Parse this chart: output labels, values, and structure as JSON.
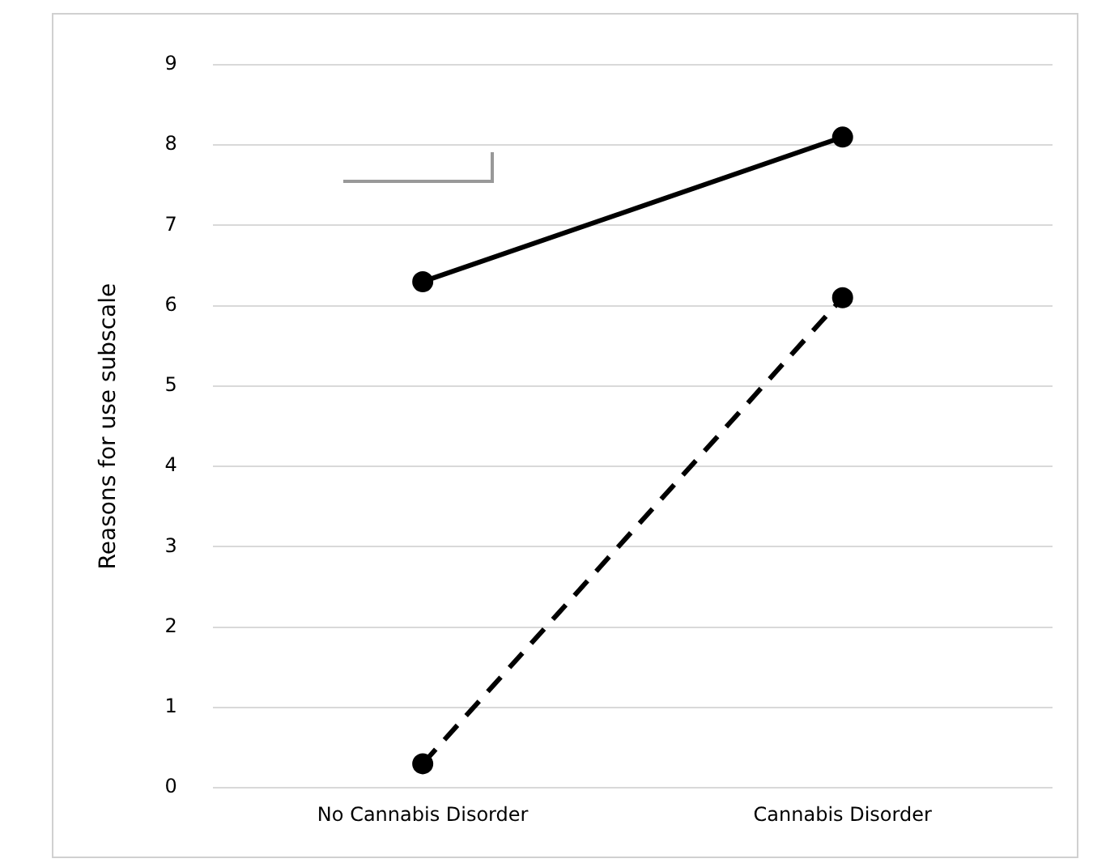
{
  "chart_data": {
    "type": "line",
    "ylabel": "Reasons for use subscale",
    "categories": [
      "No Cannabis Disorder",
      "Cannabis Disorder"
    ],
    "series": [
      {
        "color": "#000000",
        "values": [
          6.3,
          8.1
        ],
        "line_style": "solid"
      },
      {
        "color": "#000000",
        "values": [
          0.3,
          6.1
        ],
        "line_style": "dashed"
      }
    ],
    "ylim": [
      0,
      9
    ],
    "yticks": [
      0,
      1,
      2,
      3,
      4,
      5,
      6,
      7,
      8,
      9
    ],
    "grid": "y",
    "legend": false,
    "marker": "circle"
  }
}
